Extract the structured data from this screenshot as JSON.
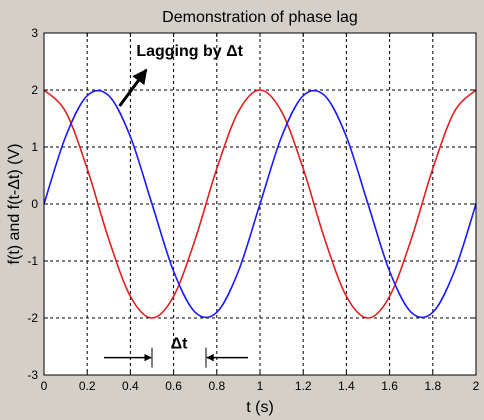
{
  "chart_data": {
    "type": "line",
    "title": "Demonstration of phase lag",
    "xlabel": "t (s)",
    "ylabel": "f(t) and f(t-Δt) (V)",
    "xlim": [
      0,
      2
    ],
    "ylim": [
      -3,
      3
    ],
    "xticks": [
      "0",
      "0.2",
      "0.4",
      "0.6",
      "0.8",
      "1",
      "1.2",
      "1.4",
      "1.6",
      "1.8",
      "2"
    ],
    "yticks": [
      "-3",
      "-2",
      "-1",
      "0",
      "1",
      "2",
      "3"
    ],
    "grid": true,
    "series": [
      {
        "color": "#e02020",
        "x": [
          0,
          0.1,
          0.2,
          0.3,
          0.4,
          0.5,
          0.6,
          0.7,
          0.8,
          0.9,
          1.0,
          1.1,
          1.2,
          1.3,
          1.4,
          1.5,
          1.6,
          1.7,
          1.8,
          1.9,
          2.0
        ],
        "y": [
          2,
          1.62,
          0.62,
          -0.62,
          -1.62,
          -2,
          -1.62,
          -0.62,
          0.62,
          1.62,
          2,
          1.62,
          0.62,
          -0.62,
          -1.62,
          -2,
          -1.62,
          -0.62,
          0.62,
          1.62,
          2
        ]
      },
      {
        "color": "#1a1aff",
        "x": [
          0,
          0.1,
          0.2,
          0.3,
          0.4,
          0.5,
          0.6,
          0.7,
          0.8,
          0.9,
          1.0,
          1.1,
          1.2,
          1.3,
          1.4,
          1.5,
          1.6,
          1.7,
          1.8,
          1.9,
          2.0
        ],
        "y": [
          0,
          1.18,
          1.9,
          1.9,
          1.18,
          0,
          -1.18,
          -1.9,
          -1.9,
          -1.18,
          0,
          1.18,
          1.9,
          1.9,
          1.18,
          0,
          -1.18,
          -1.9,
          -1.9,
          -1.18,
          0
        ]
      }
    ],
    "annotations": [
      {
        "text": "Lagging by Δt",
        "x": 0.52,
        "y": 2.6,
        "arrow_to": [
          0.35,
          2.0
        ]
      },
      {
        "text": "Δt",
        "x": 0.62,
        "y": -2.45,
        "bracket": [
          0.5,
          0.75
        ]
      }
    ]
  }
}
